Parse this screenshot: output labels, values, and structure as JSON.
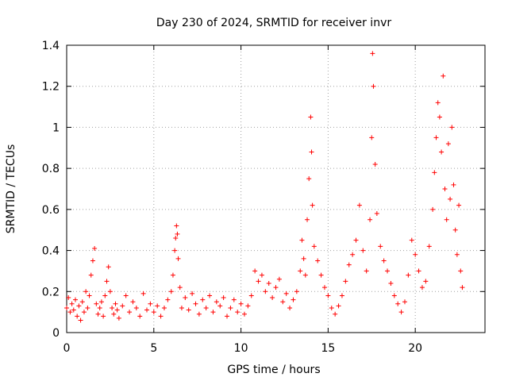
{
  "chart_data": {
    "type": "scatter",
    "title": "Day 230 of 2024, SRMTID for receiver invr",
    "xlabel": "GPS time / hours",
    "ylabel": "SRMTID / TECUs",
    "xlim": [
      0,
      24
    ],
    "ylim": [
      0,
      1.4
    ],
    "xticks": [
      0,
      5,
      10,
      15,
      20
    ],
    "xtick_labels": [
      "0",
      "5",
      "10",
      "15",
      "20"
    ],
    "yticks": [
      0,
      0.2,
      0.4,
      0.6,
      0.8,
      1.0,
      1.2,
      1.4
    ],
    "ytick_labels": [
      "0",
      "0.2",
      "0.4",
      "0.6",
      "0.8",
      "1",
      "1.2",
      "1.4"
    ],
    "grid": true,
    "marker": "+",
    "color": "#ff0000",
    "series": [
      {
        "name": "SRMTID",
        "points": [
          [
            0.0,
            0.12
          ],
          [
            0.1,
            0.17
          ],
          [
            0.2,
            0.1
          ],
          [
            0.3,
            0.14
          ],
          [
            0.4,
            0.11
          ],
          [
            0.5,
            0.16
          ],
          [
            0.6,
            0.08
          ],
          [
            0.7,
            0.13
          ],
          [
            0.8,
            0.06
          ],
          [
            0.9,
            0.15
          ],
          [
            1.0,
            0.1
          ],
          [
            1.1,
            0.2
          ],
          [
            1.2,
            0.12
          ],
          [
            1.3,
            0.18
          ],
          [
            1.4,
            0.28
          ],
          [
            1.5,
            0.35
          ],
          [
            1.6,
            0.41
          ],
          [
            1.7,
            0.14
          ],
          [
            1.8,
            0.09
          ],
          [
            1.9,
            0.12
          ],
          [
            2.0,
            0.15
          ],
          [
            2.1,
            0.08
          ],
          [
            2.2,
            0.18
          ],
          [
            2.3,
            0.25
          ],
          [
            2.4,
            0.32
          ],
          [
            2.5,
            0.2
          ],
          [
            2.6,
            0.12
          ],
          [
            2.7,
            0.09
          ],
          [
            2.8,
            0.14
          ],
          [
            2.9,
            0.11
          ],
          [
            3.0,
            0.07
          ],
          [
            3.2,
            0.13
          ],
          [
            3.4,
            0.18
          ],
          [
            3.6,
            0.1
          ],
          [
            3.8,
            0.15
          ],
          [
            4.0,
            0.12
          ],
          [
            4.2,
            0.08
          ],
          [
            4.4,
            0.19
          ],
          [
            4.6,
            0.11
          ],
          [
            4.8,
            0.14
          ],
          [
            5.0,
            0.1
          ],
          [
            5.2,
            0.13
          ],
          [
            5.4,
            0.08
          ],
          [
            5.6,
            0.12
          ],
          [
            5.8,
            0.16
          ],
          [
            6.0,
            0.2
          ],
          [
            6.1,
            0.28
          ],
          [
            6.2,
            0.4
          ],
          [
            6.25,
            0.46
          ],
          [
            6.3,
            0.52
          ],
          [
            6.35,
            0.48
          ],
          [
            6.4,
            0.36
          ],
          [
            6.5,
            0.22
          ],
          [
            6.6,
            0.12
          ],
          [
            6.8,
            0.17
          ],
          [
            7.0,
            0.11
          ],
          [
            7.2,
            0.19
          ],
          [
            7.4,
            0.14
          ],
          [
            7.6,
            0.09
          ],
          [
            7.8,
            0.16
          ],
          [
            8.0,
            0.12
          ],
          [
            8.2,
            0.18
          ],
          [
            8.4,
            0.1
          ],
          [
            8.6,
            0.15
          ],
          [
            8.8,
            0.13
          ],
          [
            9.0,
            0.17
          ],
          [
            9.2,
            0.08
          ],
          [
            9.4,
            0.12
          ],
          [
            9.6,
            0.16
          ],
          [
            9.8,
            0.1
          ],
          [
            10.0,
            0.14
          ],
          [
            10.2,
            0.09
          ],
          [
            10.4,
            0.13
          ],
          [
            10.6,
            0.18
          ],
          [
            10.8,
            0.3
          ],
          [
            11.0,
            0.25
          ],
          [
            11.2,
            0.28
          ],
          [
            11.4,
            0.2
          ],
          [
            11.6,
            0.24
          ],
          [
            11.8,
            0.17
          ],
          [
            12.0,
            0.22
          ],
          [
            12.2,
            0.26
          ],
          [
            12.4,
            0.15
          ],
          [
            12.6,
            0.19
          ],
          [
            12.8,
            0.12
          ],
          [
            13.0,
            0.16
          ],
          [
            13.2,
            0.2
          ],
          [
            13.4,
            0.3
          ],
          [
            13.5,
            0.45
          ],
          [
            13.6,
            0.36
          ],
          [
            13.7,
            0.28
          ],
          [
            13.8,
            0.55
          ],
          [
            13.9,
            0.75
          ],
          [
            14.0,
            1.05
          ],
          [
            14.05,
            0.88
          ],
          [
            14.1,
            0.62
          ],
          [
            14.2,
            0.42
          ],
          [
            14.4,
            0.35
          ],
          [
            14.6,
            0.28
          ],
          [
            14.8,
            0.22
          ],
          [
            15.0,
            0.18
          ],
          [
            15.2,
            0.12
          ],
          [
            15.4,
            0.09
          ],
          [
            15.6,
            0.13
          ],
          [
            15.8,
            0.18
          ],
          [
            16.0,
            0.25
          ],
          [
            16.2,
            0.33
          ],
          [
            16.4,
            0.38
          ],
          [
            16.6,
            0.45
          ],
          [
            16.8,
            0.62
          ],
          [
            17.0,
            0.4
          ],
          [
            17.2,
            0.3
          ],
          [
            17.4,
            0.55
          ],
          [
            17.5,
            0.95
          ],
          [
            17.55,
            1.36
          ],
          [
            17.6,
            1.2
          ],
          [
            17.7,
            0.82
          ],
          [
            17.8,
            0.58
          ],
          [
            18.0,
            0.42
          ],
          [
            18.2,
            0.35
          ],
          [
            18.4,
            0.3
          ],
          [
            18.6,
            0.24
          ],
          [
            18.8,
            0.18
          ],
          [
            19.0,
            0.14
          ],
          [
            19.2,
            0.1
          ],
          [
            19.4,
            0.15
          ],
          [
            19.6,
            0.28
          ],
          [
            19.8,
            0.45
          ],
          [
            20.0,
            0.38
          ],
          [
            20.2,
            0.3
          ],
          [
            20.4,
            0.22
          ],
          [
            20.6,
            0.25
          ],
          [
            20.8,
            0.42
          ],
          [
            21.0,
            0.6
          ],
          [
            21.1,
            0.78
          ],
          [
            21.2,
            0.95
          ],
          [
            21.3,
            1.12
          ],
          [
            21.4,
            1.05
          ],
          [
            21.5,
            0.88
          ],
          [
            21.6,
            1.25
          ],
          [
            21.7,
            0.7
          ],
          [
            21.8,
            0.55
          ],
          [
            21.9,
            0.92
          ],
          [
            22.0,
            0.65
          ],
          [
            22.1,
            1.0
          ],
          [
            22.2,
            0.72
          ],
          [
            22.3,
            0.5
          ],
          [
            22.4,
            0.38
          ],
          [
            22.5,
            0.62
          ],
          [
            22.6,
            0.3
          ],
          [
            22.7,
            0.22
          ]
        ]
      }
    ]
  }
}
